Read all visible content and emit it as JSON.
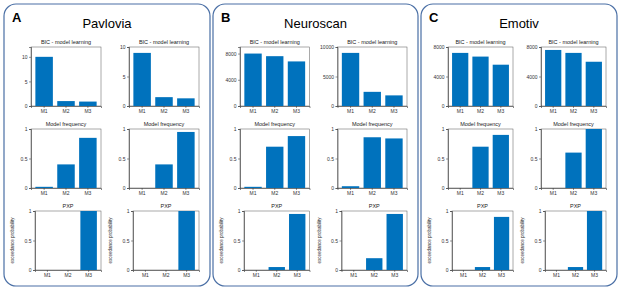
{
  "panels": [
    {
      "letter": "A",
      "title": "Pavlovia"
    },
    {
      "letter": "B",
      "title": "Neuroscan"
    },
    {
      "letter": "C",
      "title": "Emotiv"
    }
  ],
  "chart_data": [
    {
      "type": "bar",
      "title": "BIC - model learning",
      "categories": [
        "M1",
        "M2",
        "M3"
      ],
      "values": [
        10,
        1,
        0.9
      ],
      "color": "#0072bd",
      "ylim": [
        0,
        12
      ],
      "yticks": [
        0,
        5,
        10
      ]
    },
    {
      "type": "bar",
      "title": "BIC - model learning",
      "categories": [
        "M1",
        "M2",
        "M3"
      ],
      "values": [
        9,
        1.5,
        1.3
      ],
      "color": "#0072bd",
      "ylim": [
        0,
        10
      ],
      "yticks": [
        0,
        5,
        10
      ]
    },
    {
      "type": "bar",
      "title": "Model frequency",
      "categories": [
        "M1",
        "M2",
        "M3"
      ],
      "values": [
        0.02,
        0.4,
        0.85
      ],
      "color": "#0072bd",
      "ylim": [
        0,
        1
      ],
      "yticks": [
        0,
        0.5,
        1
      ]
    },
    {
      "type": "bar",
      "title": "Model frequency",
      "categories": [
        "M1",
        "M2",
        "M3"
      ],
      "values": [
        0,
        0.4,
        0.95
      ],
      "color": "#0072bd",
      "ylim": [
        0,
        1
      ],
      "yticks": [
        0,
        0.5,
        1
      ]
    },
    {
      "type": "bar",
      "title": "PXP",
      "ylabel": "exceedance probability",
      "categories": [
        "M1",
        "M2",
        "M3"
      ],
      "values": [
        0,
        0,
        1
      ],
      "color": "#0072bd",
      "ylim": [
        0,
        1
      ],
      "yticks": [
        0,
        0.5,
        1
      ]
    },
    {
      "type": "bar",
      "title": "PXP",
      "ylabel": "exceedance probability",
      "categories": [
        "M1",
        "M2",
        "M3"
      ],
      "values": [
        0,
        0,
        1
      ],
      "color": "#0072bd",
      "ylim": [
        0,
        1
      ],
      "yticks": [
        0,
        0.5,
        1
      ]
    },
    {
      "type": "bar",
      "title": "BIC - model learning",
      "categories": [
        "M1",
        "M2",
        "M3"
      ],
      "values": [
        8000,
        7600,
        6800
      ],
      "color": "#0072bd",
      "ylim": [
        0,
        9000
      ],
      "yticks": [
        0,
        4000,
        8000
      ]
    },
    {
      "type": "bar",
      "title": "BIC - model learning",
      "categories": [
        "M1",
        "M2",
        "M3"
      ],
      "values": [
        9000,
        2400,
        1800
      ],
      "color": "#0072bd",
      "ylim": [
        0,
        10000
      ],
      "yticks": [
        0,
        5000,
        10000
      ]
    },
    {
      "type": "bar",
      "title": "Model frequency",
      "categories": [
        "M1",
        "M2",
        "M3"
      ],
      "values": [
        0.02,
        0.7,
        0.88
      ],
      "color": "#0072bd",
      "ylim": [
        0,
        1
      ],
      "yticks": [
        0,
        0.5,
        1
      ]
    },
    {
      "type": "bar",
      "title": "Model frequency",
      "categories": [
        "M1",
        "M2",
        "M3"
      ],
      "values": [
        0.03,
        0.86,
        0.84
      ],
      "color": "#0072bd",
      "ylim": [
        0,
        1
      ],
      "yticks": [
        0,
        0.5,
        1
      ]
    },
    {
      "type": "bar",
      "title": "PXP",
      "ylabel": "exceedance probability",
      "categories": [
        "M1",
        "M2",
        "M3"
      ],
      "values": [
        0,
        0.05,
        0.95
      ],
      "color": "#0072bd",
      "ylim": [
        0,
        1
      ],
      "yticks": [
        0,
        0.5,
        1
      ]
    },
    {
      "type": "bar",
      "title": "PXP",
      "ylabel": "exceedance probability",
      "categories": [
        "M1",
        "M2",
        "M3"
      ],
      "values": [
        0,
        0.2,
        0.95
      ],
      "color": "#0072bd",
      "ylim": [
        0,
        1
      ],
      "yticks": [
        0,
        0.5,
        1
      ]
    },
    {
      "type": "bar",
      "title": "BIC - model learning",
      "categories": [
        "M1",
        "M2",
        "M3"
      ],
      "values": [
        7200,
        6700,
        5600
      ],
      "color": "#0072bd",
      "ylim": [
        0,
        8000
      ],
      "yticks": [
        0,
        4000,
        8000
      ]
    },
    {
      "type": "bar",
      "title": "BIC - model learning",
      "categories": [
        "M1",
        "M2",
        "M3"
      ],
      "values": [
        7600,
        7200,
        6000
      ],
      "color": "#0072bd",
      "ylim": [
        0,
        8000
      ],
      "yticks": [
        0,
        4000,
        8000
      ]
    },
    {
      "type": "bar",
      "title": "Model frequency",
      "categories": [
        "M1",
        "M2",
        "M3"
      ],
      "values": [
        0,
        0.7,
        0.9
      ],
      "color": "#0072bd",
      "ylim": [
        0,
        1
      ],
      "yticks": [
        0,
        0.5,
        1
      ]
    },
    {
      "type": "bar",
      "title": "Model frequency",
      "categories": [
        "M1",
        "M2",
        "M3"
      ],
      "values": [
        0,
        0.6,
        1
      ],
      "color": "#0072bd",
      "ylim": [
        0,
        1
      ],
      "yticks": [
        0,
        0.5,
        1
      ]
    },
    {
      "type": "bar",
      "title": "PXP",
      "ylabel": "exceedance probability",
      "categories": [
        "M1",
        "M2",
        "M3"
      ],
      "values": [
        0,
        0.05,
        0.9
      ],
      "color": "#0072bd",
      "ylim": [
        0,
        1
      ],
      "yticks": [
        0,
        0.5,
        1
      ]
    },
    {
      "type": "bar",
      "title": "PXP",
      "ylabel": "exceedance probability",
      "categories": [
        "M1",
        "M2",
        "M3"
      ],
      "values": [
        0,
        0.05,
        1
      ],
      "color": "#0072bd",
      "ylim": [
        0,
        1
      ],
      "yticks": [
        0,
        0.5,
        1
      ]
    }
  ]
}
